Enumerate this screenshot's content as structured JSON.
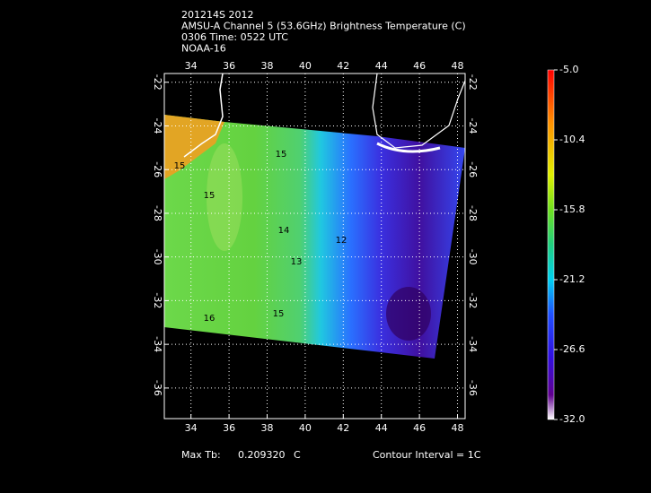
{
  "chart_data": {
    "type": "contour",
    "title_lines": [
      "201214S 2012",
      "AMSU-A Channel 5 (53.6GHz) Brightness Temperature (C)",
      "0306 Time: 0522 UTC",
      "NOAA-16"
    ],
    "xlim": [
      32.6,
      48.4
    ],
    "xticks": [
      34,
      36,
      38,
      40,
      42,
      44,
      46,
      48
    ],
    "ylim": [
      -37.4,
      -21.6
    ],
    "yticks": [
      -22,
      -24,
      -26,
      -28,
      -30,
      -32,
      -34,
      -36
    ],
    "grid": true,
    "colorbar": {
      "lim": [
        -32,
        -5
      ],
      "ticks": [
        {
          "value": -5,
          "label": "-5.0"
        },
        {
          "value": -10.4,
          "label": "-10.4"
        },
        {
          "value": -15.8,
          "label": "-15.8"
        },
        {
          "value": -21.2,
          "label": "-21.2"
        },
        {
          "value": -26.6,
          "label": "-26.6"
        },
        {
          "value": -32,
          "label": "-32.0"
        }
      ]
    },
    "contour_labels": [
      "15",
      "15",
      "15",
      "14",
      "13",
      "12",
      "16",
      "15"
    ],
    "footer": {
      "max_label": "Max Tb:",
      "max_value": "0.209320",
      "max_unit": "C",
      "interval": "Contour Interval = 1C"
    }
  }
}
